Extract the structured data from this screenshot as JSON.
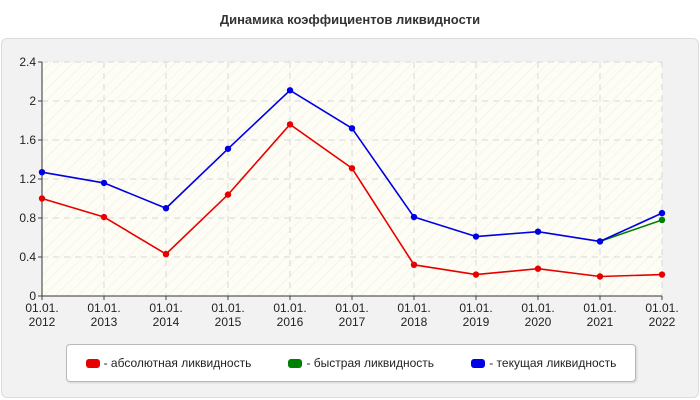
{
  "chart_data": {
    "type": "line",
    "title": "Динамика коэффициентов ликвидности",
    "x_labels": [
      [
        "01.01.",
        "2012"
      ],
      [
        "01.01.",
        "2013"
      ],
      [
        "01.01.",
        "2014"
      ],
      [
        "01.01.",
        "2015"
      ],
      [
        "01.01.",
        "2016"
      ],
      [
        "01.01.",
        "2017"
      ],
      [
        "01.01.",
        "2018"
      ],
      [
        "01.01.",
        "2019"
      ],
      [
        "01.01.",
        "2020"
      ],
      [
        "01.01.",
        "2021"
      ],
      [
        "01.01.",
        "2022"
      ]
    ],
    "y_ticks": [
      "0",
      "0.4",
      "0.8",
      "1.2",
      "1.6",
      "2",
      "2.4"
    ],
    "ylim": [
      0,
      2.4
    ],
    "grid": true,
    "legend_position": "bottom",
    "series": [
      {
        "name": "абсолютная ликвидность",
        "color": "#e60000",
        "values": [
          1.0,
          0.81,
          0.43,
          1.04,
          1.76,
          1.31,
          0.32,
          0.22,
          0.28,
          0.2,
          0.22
        ]
      },
      {
        "name": "быстрая ликвидность",
        "color": "#008000",
        "values": [
          null,
          null,
          null,
          null,
          null,
          null,
          null,
          null,
          null,
          0.56,
          0.78
        ]
      },
      {
        "name": "текущая ликвидность",
        "color": "#0000e6",
        "values": [
          1.27,
          1.16,
          0.9,
          1.51,
          2.11,
          1.72,
          0.81,
          0.61,
          0.66,
          0.56,
          0.85
        ]
      }
    ]
  }
}
